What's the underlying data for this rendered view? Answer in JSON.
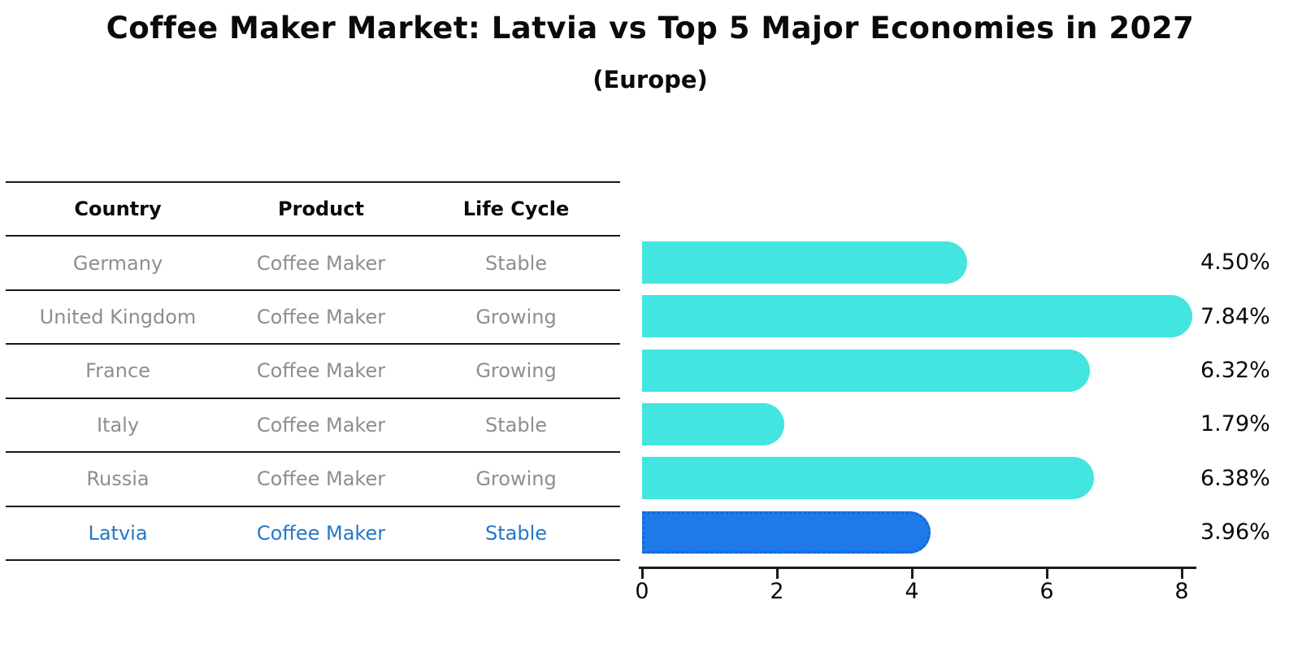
{
  "title": "Coffee Maker Market: Latvia vs Top 5 Major Economies in 2027",
  "subtitle": "(Europe)",
  "table": {
    "headers": [
      "Country",
      "Product",
      "Life Cycle"
    ],
    "rows": [
      {
        "country": "Germany",
        "product": "Coffee Maker",
        "life_cycle": "Stable",
        "highlight": false
      },
      {
        "country": "United Kingdom",
        "product": "Coffee Maker",
        "life_cycle": "Growing",
        "highlight": false
      },
      {
        "country": "France",
        "product": "Coffee Maker",
        "life_cycle": "Growing",
        "highlight": false
      },
      {
        "country": "Italy",
        "product": "Coffee Maker",
        "life_cycle": "Stable",
        "highlight": false
      },
      {
        "country": "Russia",
        "product": "Coffee Maker",
        "life_cycle": "Growing",
        "highlight": false
      },
      {
        "country": "Latvia",
        "product": "Coffee Maker",
        "life_cycle": "Stable",
        "highlight": true
      }
    ]
  },
  "chart_data": {
    "type": "bar",
    "orientation": "horizontal",
    "categories": [
      "Germany",
      "United Kingdom",
      "France",
      "Italy",
      "Russia",
      "Latvia"
    ],
    "values": [
      4.5,
      7.84,
      6.32,
      1.79,
      6.38,
      3.96
    ],
    "value_labels": [
      "4.50%",
      "7.84%",
      "6.32%",
      "1.79%",
      "6.38%",
      "3.96%"
    ],
    "x_ticks": [
      0,
      2,
      4,
      6,
      8
    ],
    "xlim": [
      0,
      8.3
    ],
    "grid": false,
    "legend": "none",
    "highlight_category": "Latvia",
    "colors": {
      "bar": "#42E5E0",
      "highlight_bar": "#1E7AE8",
      "highlight_border": "#1565D8",
      "highlight_text": "#2478C8"
    }
  }
}
